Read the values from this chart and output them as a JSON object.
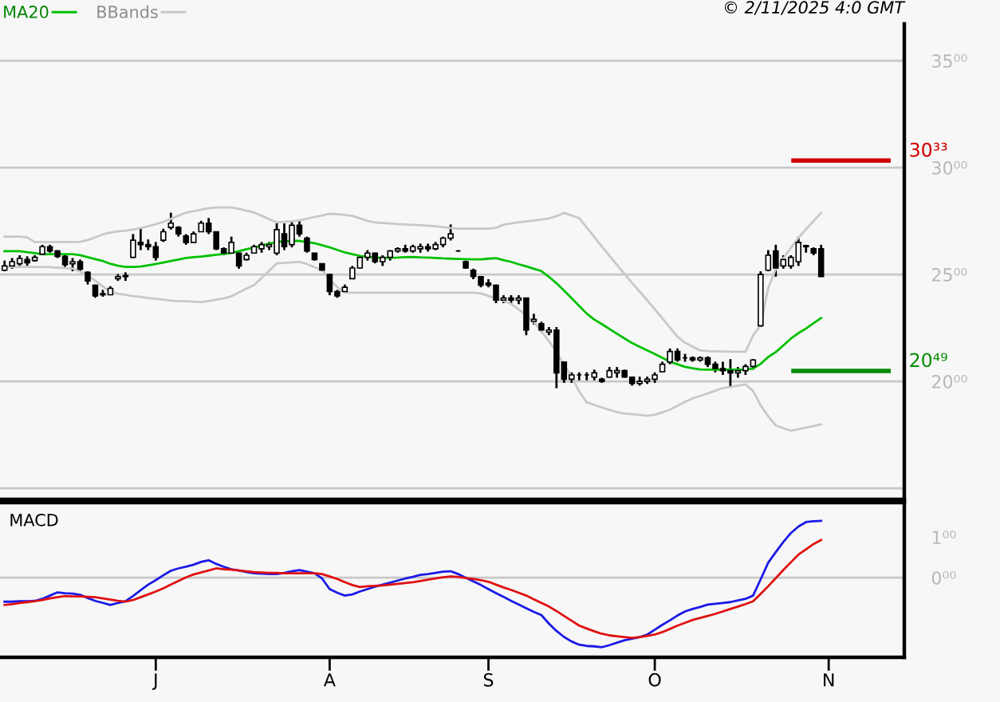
{
  "chart_data": [
    {
      "type": "candlestick",
      "legend": "top left",
      "grid": "y",
      "tick_labels": "y",
      "ylim": [
        14.48,
        36.72
      ],
      "categories": [
        null,
        null,
        null,
        null,
        null,
        null,
        null,
        null,
        null,
        null,
        null,
        null,
        null,
        null,
        null,
        null,
        null,
        null,
        null,
        null,
        null,
        null,
        null,
        null,
        null,
        null,
        null,
        null,
        null,
        null,
        null,
        null,
        null,
        null,
        null,
        null,
        null,
        null,
        null,
        null,
        null,
        null,
        null,
        null,
        null,
        null,
        null,
        null,
        null,
        null,
        null,
        null,
        null,
        null,
        null,
        null,
        null,
        null,
        null,
        null,
        null,
        null,
        null,
        null,
        null,
        null,
        null,
        null,
        null,
        null,
        null,
        null,
        null,
        null,
        null,
        null,
        null,
        null,
        null,
        null,
        null,
        null,
        null,
        null,
        null,
        null,
        null,
        null,
        null,
        null,
        null,
        null,
        null,
        null,
        null,
        null,
        null,
        null,
        null,
        null,
        null,
        null,
        null,
        null,
        null,
        null,
        null,
        null,
        null,
        null,
        null,
        null,
        null,
        null,
        null,
        null,
        null,
        null,
        null
      ],
      "yticks": [
        {
          "value": 15,
          "label": null
        },
        {
          "value": 20,
          "label": "20⁰⁰"
        },
        {
          "value": 25,
          "label": "25⁰⁰"
        },
        {
          "value": 30,
          "label": "30⁰⁰"
        },
        {
          "value": 35,
          "label": "35⁰⁰"
        }
      ],
      "annotations": [
        "© 2/11/2025 4:0 GMT"
      ],
      "ref_lines": [
        {
          "axis": "y",
          "value": 30.33,
          "label": "30³³",
          "color": "#d00000"
        },
        {
          "axis": "y",
          "value": 20.49,
          "label": "20⁴⁹",
          "color": "#008c00"
        }
      ],
      "ohlc": [
        [
          25.2,
          25.65,
          25.15,
          25.4
        ],
        [
          25.4,
          25.77,
          25.27,
          25.6
        ],
        [
          25.5,
          25.9,
          25.4,
          25.75
        ],
        [
          25.7,
          25.85,
          25.4,
          25.55
        ],
        [
          25.65,
          25.9,
          25.6,
          25.8
        ],
        [
          25.95,
          26.39,
          25.9,
          26.3
        ],
        [
          26.3,
          26.39,
          26.02,
          26.1
        ],
        [
          26.1,
          26.14,
          25.77,
          25.85
        ],
        [
          25.85,
          25.9,
          25.35,
          25.45
        ],
        [
          25.5,
          25.77,
          25.15,
          25.6
        ],
        [
          25.6,
          25.7,
          25.15,
          25.25
        ],
        [
          25.1,
          25.15,
          24.53,
          24.7
        ],
        [
          24.5,
          24.53,
          23.91,
          24.0
        ],
        [
          24.1,
          24.28,
          23.96,
          24.05
        ],
        [
          24.05,
          24.45,
          24.03,
          24.35
        ],
        [
          24.8,
          25.02,
          24.7,
          24.9
        ],
        [
          24.9,
          25.1,
          24.7,
          24.95
        ],
        [
          25.8,
          26.89,
          25.77,
          26.6
        ],
        [
          26.5,
          27.14,
          26.14,
          26.4
        ],
        [
          26.4,
          26.64,
          26.14,
          26.3
        ],
        [
          26.3,
          26.52,
          25.65,
          25.8
        ],
        [
          26.6,
          27.14,
          26.52,
          27.0
        ],
        [
          27.2,
          27.89,
          27.1,
          27.4
        ],
        [
          27.2,
          27.26,
          26.77,
          26.9
        ],
        [
          26.8,
          26.89,
          26.39,
          26.5
        ],
        [
          26.5,
          27.01,
          26.5,
          26.9
        ],
        [
          27.0,
          27.51,
          27.0,
          27.4
        ],
        [
          27.4,
          27.64,
          26.89,
          27.0
        ],
        [
          27.0,
          27.01,
          26.14,
          26.2
        ],
        [
          26.2,
          26.27,
          25.9,
          26.0
        ],
        [
          26.0,
          26.77,
          26.0,
          26.5
        ],
        [
          26.0,
          26.02,
          25.27,
          25.4
        ],
        [
          25.7,
          26.02,
          25.65,
          25.9
        ],
        [
          26.0,
          26.39,
          26.0,
          26.3
        ],
        [
          26.2,
          26.52,
          26.02,
          26.4
        ],
        [
          26.3,
          26.52,
          26.14,
          26.4
        ],
        [
          26.0,
          27.39,
          25.9,
          27.1
        ],
        [
          26.9,
          27.39,
          26.14,
          26.3
        ],
        [
          26.4,
          27.51,
          26.27,
          27.3
        ],
        [
          27.3,
          27.51,
          26.77,
          26.9
        ],
        [
          26.7,
          26.77,
          26.02,
          26.1
        ],
        [
          26.0,
          26.02,
          25.65,
          25.7
        ],
        [
          25.5,
          25.52,
          25.15,
          25.2
        ],
        [
          25.0,
          25.02,
          24.03,
          24.2
        ],
        [
          24.2,
          24.28,
          23.91,
          24.0
        ],
        [
          24.2,
          24.53,
          24.15,
          24.4
        ],
        [
          24.8,
          25.4,
          24.78,
          25.3
        ],
        [
          25.3,
          25.9,
          25.27,
          25.8
        ],
        [
          25.8,
          26.14,
          25.65,
          26.0
        ],
        [
          26.0,
          26.02,
          25.52,
          25.6
        ],
        [
          25.6,
          25.9,
          25.4,
          25.8
        ],
        [
          25.8,
          26.14,
          25.65,
          26.1
        ],
        [
          26.1,
          26.27,
          26.02,
          26.2
        ],
        [
          26.2,
          26.39,
          26.02,
          26.1
        ],
        [
          26.1,
          26.39,
          26.02,
          26.3
        ],
        [
          26.2,
          26.44,
          26.02,
          26.3
        ],
        [
          26.3,
          26.44,
          26.07,
          26.2
        ],
        [
          26.2,
          26.52,
          26.14,
          26.4
        ],
        [
          26.4,
          26.77,
          26.27,
          26.7
        ],
        [
          26.7,
          27.34,
          26.59,
          26.9
        ],
        [
          26.1,
          26.14,
          26.07,
          26.1
        ],
        [
          25.6,
          25.65,
          25.27,
          25.3
        ],
        [
          25.2,
          25.27,
          24.78,
          24.9
        ],
        [
          24.9,
          24.9,
          24.4,
          24.5
        ],
        [
          24.6,
          24.78,
          24.4,
          24.5
        ],
        [
          24.5,
          24.53,
          23.66,
          23.8
        ],
        [
          23.8,
          24.03,
          23.66,
          23.9
        ],
        [
          23.9,
          24.03,
          23.66,
          23.8
        ],
        [
          23.8,
          24.03,
          23.61,
          23.9
        ],
        [
          23.9,
          23.91,
          22.16,
          22.4
        ],
        [
          22.8,
          23.16,
          22.66,
          22.9
        ],
        [
          22.7,
          22.79,
          22.29,
          22.4
        ],
        [
          22.3,
          22.54,
          22.16,
          22.4
        ],
        [
          22.4,
          22.54,
          19.68,
          20.4
        ],
        [
          20.9,
          20.92,
          19.93,
          20.1
        ],
        [
          20.1,
          20.42,
          19.93,
          20.3
        ],
        [
          20.3,
          20.42,
          20.05,
          20.3
        ],
        [
          20.3,
          20.42,
          20.05,
          20.3
        ],
        [
          20.2,
          20.55,
          20.05,
          20.4
        ],
        [
          20.1,
          20.17,
          19.93,
          20.0
        ],
        [
          20.2,
          20.67,
          20.17,
          20.5
        ],
        [
          20.4,
          20.67,
          20.17,
          20.5
        ],
        [
          20.5,
          20.55,
          20.17,
          20.2
        ],
        [
          20.2,
          20.22,
          19.8,
          19.9
        ],
        [
          19.9,
          20.22,
          19.8,
          20.0
        ],
        [
          20.0,
          20.22,
          19.88,
          20.1
        ],
        [
          20.1,
          20.42,
          19.93,
          20.3
        ],
        [
          20.45,
          20.92,
          20.42,
          20.8
        ],
        [
          20.9,
          21.54,
          20.8,
          21.4
        ],
        [
          21.4,
          21.54,
          20.92,
          21.0
        ],
        [
          21.1,
          21.29,
          20.92,
          21.1
        ],
        [
          21.1,
          21.17,
          20.92,
          21.0
        ],
        [
          21.0,
          21.17,
          20.92,
          21.1
        ],
        [
          21.1,
          21.17,
          20.67,
          20.8
        ],
        [
          20.8,
          20.92,
          20.42,
          20.6
        ],
        [
          20.6,
          20.92,
          20.3,
          20.5
        ],
        [
          20.5,
          21.04,
          19.73,
          20.4
        ],
        [
          20.4,
          20.67,
          20.17,
          20.5
        ],
        [
          20.5,
          20.8,
          20.3,
          20.7
        ],
        [
          20.7,
          21.04,
          20.55,
          21.0
        ],
        [
          22.6,
          25.15,
          22.54,
          25.0
        ],
        [
          25.2,
          26.14,
          25.15,
          25.9
        ],
        [
          26.1,
          26.39,
          24.9,
          25.3
        ],
        [
          25.4,
          25.9,
          25.27,
          25.7
        ],
        [
          25.4,
          25.9,
          25.27,
          25.8
        ],
        [
          25.6,
          26.77,
          25.4,
          26.5
        ],
        [
          26.35,
          26.39,
          26.02,
          26.3
        ],
        [
          26.2,
          26.27,
          25.9,
          26.0
        ],
        [
          26.2,
          26.39,
          24.9,
          24.9
        ],
        null,
        null,
        null,
        null,
        null,
        null,
        null,
        null,
        null,
        null
      ],
      "series": [
        {
          "name": "MA20",
          "type": "line",
          "color": "#00c000",
          "values": [
            26.09,
            26.09,
            26.09,
            26.04,
            26.0,
            25.95,
            25.95,
            25.95,
            25.95,
            25.95,
            25.9,
            25.81,
            25.72,
            25.63,
            25.5,
            25.41,
            25.35,
            25.35,
            25.37,
            25.43,
            25.49,
            25.56,
            25.63,
            25.7,
            25.77,
            25.81,
            25.84,
            25.88,
            25.92,
            25.96,
            26.01,
            26.09,
            26.18,
            26.26,
            26.35,
            26.44,
            26.52,
            26.55,
            26.57,
            26.57,
            26.52,
            26.46,
            26.37,
            26.27,
            26.15,
            26.03,
            25.95,
            25.87,
            25.83,
            25.8,
            25.77,
            25.78,
            25.79,
            25.81,
            25.82,
            25.8,
            25.79,
            25.77,
            25.75,
            25.74,
            25.73,
            25.72,
            25.71,
            25.71,
            25.74,
            25.76,
            25.67,
            25.59,
            25.48,
            25.38,
            25.27,
            25.16,
            24.89,
            24.59,
            24.25,
            23.89,
            23.53,
            23.17,
            22.89,
            22.68,
            22.45,
            22.23,
            22.01,
            21.79,
            21.62,
            21.45,
            21.28,
            21.1,
            20.92,
            20.8,
            20.68,
            20.61,
            20.56,
            20.55,
            20.55,
            20.55,
            20.55,
            20.55,
            20.55,
            20.6,
            20.82,
            21.14,
            21.37,
            21.68,
            22.0,
            22.26,
            22.47,
            22.72,
            22.96,
            null,
            null,
            null,
            null,
            null,
            null,
            null,
            null,
            null,
            null
          ]
        },
        {
          "name": "BBands",
          "type": "line",
          "color": "#c8c8c8",
          "values": [
            26.77,
            26.77,
            26.77,
            26.73,
            26.52,
            26.52,
            26.52,
            26.52,
            26.52,
            26.52,
            26.53,
            26.61,
            26.74,
            26.88,
            26.96,
            27.01,
            27.05,
            27.1,
            27.17,
            27.26,
            27.35,
            27.46,
            27.6,
            27.75,
            27.89,
            27.96,
            28.03,
            28.1,
            28.13,
            28.13,
            28.13,
            28.07,
            27.98,
            27.9,
            27.75,
            27.59,
            27.44,
            27.46,
            27.49,
            27.53,
            27.61,
            27.69,
            27.76,
            27.84,
            27.82,
            27.79,
            27.74,
            27.63,
            27.51,
            27.43,
            27.41,
            27.39,
            27.36,
            27.34,
            27.32,
            27.3,
            27.28,
            27.26,
            27.22,
            27.17,
            27.14,
            27.14,
            27.14,
            27.14,
            27.14,
            27.18,
            27.33,
            27.39,
            27.44,
            27.48,
            27.53,
            27.57,
            27.62,
            27.73,
            27.88,
            27.76,
            27.64,
            27.2,
            26.75,
            26.31,
            25.88,
            25.45,
            25.03,
            24.61,
            24.2,
            23.79,
            23.37,
            22.95,
            22.52,
            22.09,
            21.81,
            21.63,
            21.45,
            21.42,
            21.41,
            21.4,
            21.39,
            21.39,
            21.38,
            22.15,
            22.62,
            24.37,
            25.25,
            25.75,
            26.25,
            26.72,
            27.11,
            27.5,
            27.89,
            null,
            null,
            null,
            null,
            null,
            null,
            null,
            null,
            null,
            null
          ]
        },
        {
          "type": "line",
          "color": "#c8c8c8",
          "values": [
            25.35,
            25.35,
            25.35,
            25.35,
            25.35,
            25.35,
            25.34,
            25.32,
            25.3,
            25.28,
            25.13,
            24.95,
            24.71,
            24.44,
            24.18,
            24.1,
            24.05,
            23.99,
            23.95,
            23.9,
            23.86,
            23.82,
            23.78,
            23.76,
            23.75,
            23.73,
            23.71,
            23.76,
            23.82,
            23.88,
            23.98,
            24.16,
            24.34,
            24.51,
            24.83,
            25.18,
            25.52,
            25.54,
            25.57,
            25.59,
            25.49,
            25.34,
            25.2,
            24.77,
            24.41,
            24.15,
            24.15,
            24.15,
            24.15,
            24.15,
            24.15,
            24.15,
            24.15,
            24.15,
            24.15,
            24.15,
            24.15,
            24.15,
            24.15,
            24.15,
            24.15,
            24.15,
            24.15,
            24.11,
            24.0,
            23.88,
            23.76,
            23.63,
            23.37,
            23.1,
            22.78,
            22.34,
            21.89,
            21.37,
            20.78,
            20.22,
            19.53,
            19.02,
            18.9,
            18.78,
            18.67,
            18.56,
            18.5,
            18.47,
            18.43,
            18.39,
            18.44,
            18.55,
            18.68,
            18.86,
            19.04,
            19.2,
            19.32,
            19.44,
            19.56,
            19.69,
            19.74,
            19.8,
            19.86,
            19.55,
            18.88,
            18.37,
            17.94,
            17.81,
            17.69,
            17.76,
            17.84,
            17.91,
            17.99,
            null,
            null,
            null,
            null,
            null,
            null,
            null,
            null,
            null,
            null
          ]
        }
      ]
    },
    {
      "type": "line",
      "title": "MACD",
      "ylim": [
        -1.96,
        1.85
      ],
      "categories": [
        null,
        null,
        null,
        null,
        null,
        null,
        null,
        null,
        null,
        null,
        null,
        null,
        null,
        null,
        null,
        null,
        null,
        null,
        null,
        null,
        "J",
        null,
        null,
        null,
        null,
        null,
        null,
        null,
        null,
        null,
        null,
        null,
        null,
        null,
        null,
        null,
        null,
        null,
        null,
        null,
        null,
        null,
        null,
        "A",
        null,
        null,
        null,
        null,
        null,
        null,
        null,
        null,
        null,
        null,
        null,
        null,
        null,
        null,
        null,
        null,
        null,
        null,
        null,
        null,
        "S",
        null,
        null,
        null,
        null,
        null,
        null,
        null,
        null,
        null,
        null,
        null,
        null,
        null,
        null,
        null,
        null,
        null,
        null,
        null,
        null,
        null,
        "O",
        null,
        null,
        null,
        null,
        null,
        null,
        null,
        null,
        null,
        null,
        null,
        null,
        null,
        null,
        null,
        null,
        null,
        null,
        null,
        null,
        null,
        null,
        "N",
        null,
        null,
        null,
        null,
        null,
        null,
        null,
        null,
        null
      ],
      "yticks": [
        {
          "value": 0,
          "label": "0⁰⁰"
        },
        {
          "value": 1,
          "label": "1⁰⁰"
        }
      ],
      "ref_lines": [
        {
          "axis": "y",
          "value": 0,
          "color": "#c8c8c8"
        }
      ],
      "series": [
        {
          "color": "#1a1ae6",
          "values": [
            -0.59,
            -0.59,
            -0.58,
            -0.58,
            -0.57,
            -0.52,
            -0.44,
            -0.36,
            -0.38,
            -0.39,
            -0.42,
            -0.5,
            -0.57,
            -0.62,
            -0.67,
            -0.62,
            -0.58,
            -0.45,
            -0.31,
            -0.17,
            -0.06,
            0.06,
            0.17,
            0.23,
            0.27,
            0.32,
            0.39,
            0.43,
            0.34,
            0.27,
            0.21,
            0.18,
            0.14,
            0.11,
            0.1,
            0.09,
            0.09,
            0.12,
            0.16,
            0.19,
            0.15,
            0.11,
            -0.02,
            -0.28,
            -0.37,
            -0.44,
            -0.41,
            -0.34,
            -0.28,
            -0.22,
            -0.17,
            -0.12,
            -0.07,
            -0.02,
            0.02,
            0.07,
            0.09,
            0.12,
            0.15,
            0.16,
            0.09,
            0.0,
            -0.09,
            -0.18,
            -0.28,
            -0.38,
            -0.47,
            -0.57,
            -0.66,
            -0.75,
            -0.84,
            -0.92,
            -1.13,
            -1.31,
            -1.46,
            -1.57,
            -1.65,
            -1.68,
            -1.69,
            -1.71,
            -1.66,
            -1.6,
            -1.54,
            -1.5,
            -1.46,
            -1.4,
            -1.28,
            -1.16,
            -1.05,
            -0.93,
            -0.83,
            -0.77,
            -0.72,
            -0.66,
            -0.64,
            -0.62,
            -0.6,
            -0.56,
            -0.52,
            -0.44,
            -0.04,
            0.37,
            0.63,
            0.88,
            1.1,
            1.26,
            1.37,
            1.39,
            1.4,
            null,
            null,
            null,
            null,
            null,
            null,
            null,
            null,
            null,
            null
          ]
        },
        {
          "color": "#e01010",
          "values": [
            -0.67,
            -0.65,
            -0.62,
            -0.6,
            -0.58,
            -0.55,
            -0.51,
            -0.48,
            -0.45,
            -0.46,
            -0.46,
            -0.47,
            -0.48,
            -0.51,
            -0.54,
            -0.57,
            -0.59,
            -0.55,
            -0.48,
            -0.41,
            -0.34,
            -0.26,
            -0.17,
            -0.08,
            0.01,
            0.08,
            0.13,
            0.18,
            0.23,
            0.21,
            0.2,
            0.18,
            0.16,
            0.14,
            0.13,
            0.12,
            0.12,
            0.11,
            0.11,
            0.11,
            0.11,
            0.11,
            0.09,
            0.03,
            -0.03,
            -0.11,
            -0.18,
            -0.23,
            -0.21,
            -0.2,
            -0.19,
            -0.17,
            -0.15,
            -0.13,
            -0.11,
            -0.08,
            -0.05,
            -0.02,
            0.01,
            0.03,
            0.02,
            -0.01,
            -0.03,
            -0.06,
            -0.1,
            -0.17,
            -0.24,
            -0.3,
            -0.37,
            -0.44,
            -0.53,
            -0.62,
            -0.71,
            -0.82,
            -0.94,
            -1.06,
            -1.18,
            -1.25,
            -1.32,
            -1.38,
            -1.42,
            -1.44,
            -1.46,
            -1.48,
            -1.46,
            -1.43,
            -1.4,
            -1.34,
            -1.26,
            -1.18,
            -1.11,
            -1.04,
            -0.99,
            -0.94,
            -0.89,
            -0.83,
            -0.77,
            -0.71,
            -0.65,
            -0.58,
            -0.4,
            -0.21,
            -0.01,
            0.19,
            0.38,
            0.57,
            0.7,
            0.83,
            0.93,
            null,
            null,
            null,
            null,
            null,
            null,
            null,
            null,
            null,
            null
          ]
        }
      ]
    }
  ]
}
